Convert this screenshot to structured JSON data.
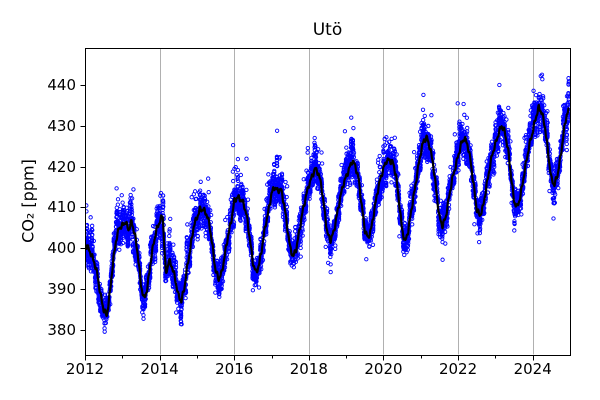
{
  "title": "Utö",
  "colors": {
    "scatter": "#0000ff",
    "line": "#000000",
    "grid": "#b0b0b0",
    "spine": "#000000",
    "background": "#ffffff",
    "text": "#000000"
  },
  "chart_data": {
    "type": "scatter",
    "title": "Utö",
    "xlabel": "",
    "ylabel": "CO₂ [ppm]",
    "xlim": [
      2012,
      2025
    ],
    "ylim": [
      374,
      449
    ],
    "x_major_ticks": [
      2012,
      2014,
      2016,
      2018,
      2020,
      2022,
      2024
    ],
    "x_minor_ticks": [
      2013,
      2015,
      2017,
      2019,
      2021,
      2023
    ],
    "y_major_ticks": [
      380,
      390,
      400,
      410,
      420,
      430,
      440
    ],
    "grid": {
      "axis": "x",
      "on": true
    },
    "legend": "none",
    "series": [
      {
        "name": "daily-co2-observations",
        "type": "scatter",
        "marker": "open-circle",
        "color": "#0000ff",
        "description": "Daily CO2 mole fraction values scattered around the smoothed seasonal curve; larger positive excursions in winter, negative dips in summer",
        "noise_model": {
          "seed": 20120101,
          "ar1": 0.72,
          "sigma_winter": 2.4,
          "sigma_summer": 1.7,
          "innovation_factor": 0.7,
          "spike_prob_winter": 0.055,
          "spike_amp_winter": 3.8,
          "spike_prob_summer": 0.04,
          "spike_amp_summer": 2.8,
          "points_per_year": 365,
          "t_start": 2012.0,
          "t_end": 2024.97
        }
      },
      {
        "name": "smoothed-co2-curve",
        "type": "line",
        "color": "#000000",
        "start_year": 2012,
        "samples_per_year": 12,
        "monthly_values": [
          401.0,
          400.0,
          398.5,
          396.5,
          393.5,
          388.5,
          385.0,
          383.5,
          389.0,
          396.5,
          402.0,
          405.0,
          405.5,
          406.5,
          404.5,
          406.5,
          403.5,
          398.5,
          391.0,
          387.5,
          390.0,
          396.0,
          401.0,
          404.5,
          406.5,
          408.0,
          393.5,
          397.0,
          395.5,
          392.5,
          388.5,
          387.0,
          390.5,
          396.0,
          400.5,
          405.5,
          407.5,
          409.5,
          409.5,
          408.5,
          406.0,
          400.5,
          394.5,
          392.5,
          394.0,
          398.5,
          403.0,
          406.5,
          411.5,
          412.5,
          412.0,
          411.0,
          408.0,
          402.5,
          396.5,
          394.0,
          396.0,
          400.5,
          405.5,
          409.0,
          413.5,
          415.0,
          414.0,
          414.5,
          411.0,
          405.5,
          400.0,
          398.0,
          400.0,
          404.5,
          409.0,
          412.5,
          415.5,
          417.5,
          419.5,
          418.5,
          415.5,
          409.5,
          403.5,
          402.0,
          404.0,
          408.0,
          412.0,
          415.5,
          417.5,
          419.5,
          421.5,
          420.0,
          417.0,
          410.5,
          404.5,
          402.5,
          404.5,
          409.0,
          413.5,
          417.0,
          419.5,
          421.5,
          421.5,
          421.0,
          418.0,
          411.5,
          404.5,
          401.5,
          404.5,
          409.5,
          414.0,
          419.0,
          423.5,
          426.5,
          427.0,
          424.5,
          420.5,
          414.0,
          407.5,
          405.5,
          407.5,
          412.0,
          416.5,
          419.5,
          422.5,
          425.5,
          427.0,
          425.5,
          421.5,
          415.5,
          409.5,
          408.0,
          410.0,
          414.5,
          419.0,
          423.0,
          425.5,
          428.0,
          430.0,
          428.5,
          424.5,
          418.0,
          411.5,
          410.0,
          412.5,
          417.0,
          421.5,
          425.5,
          428.5,
          432.0,
          434.5,
          433.0,
          429.5,
          423.0,
          417.0,
          415.5,
          418.0,
          422.5,
          428.5,
          433.0,
          434.0
        ]
      }
    ]
  }
}
